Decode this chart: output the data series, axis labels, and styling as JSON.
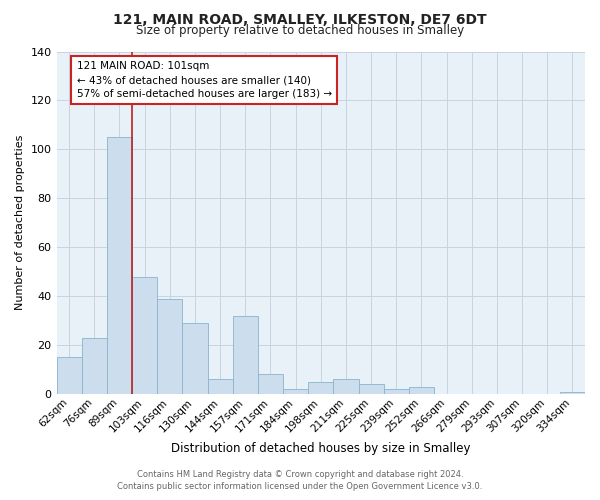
{
  "title": "121, MAIN ROAD, SMALLEY, ILKESTON, DE7 6DT",
  "subtitle": "Size of property relative to detached houses in Smalley",
  "xlabel": "Distribution of detached houses by size in Smalley",
  "ylabel": "Number of detached properties",
  "bin_labels": [
    "62sqm",
    "76sqm",
    "89sqm",
    "103sqm",
    "116sqm",
    "130sqm",
    "144sqm",
    "157sqm",
    "171sqm",
    "184sqm",
    "198sqm",
    "211sqm",
    "225sqm",
    "239sqm",
    "252sqm",
    "266sqm",
    "279sqm",
    "293sqm",
    "307sqm",
    "320sqm",
    "334sqm"
  ],
  "bar_heights": [
    15,
    23,
    105,
    48,
    39,
    29,
    6,
    32,
    8,
    2,
    5,
    6,
    4,
    2,
    3,
    0,
    0,
    0,
    0,
    0,
    1
  ],
  "bar_color": "#ccdded",
  "bar_edgecolor": "#8ab4cc",
  "grid_color": "#c8d4e0",
  "background_color": "#e8f0f8",
  "vline_x_index": 2.5,
  "vline_color": "#bb2222",
  "annotation_text": "121 MAIN ROAD: 101sqm\n← 43% of detached houses are smaller (140)\n57% of semi-detached houses are larger (183) →",
  "annotation_box_facecolor": "#ffffff",
  "annotation_box_edgecolor": "#cc2222",
  "ylim": [
    0,
    140
  ],
  "yticks": [
    0,
    20,
    40,
    60,
    80,
    100,
    120,
    140
  ],
  "footer_line1": "Contains HM Land Registry data © Crown copyright and database right 2024.",
  "footer_line2": "Contains public sector information licensed under the Open Government Licence v3.0."
}
